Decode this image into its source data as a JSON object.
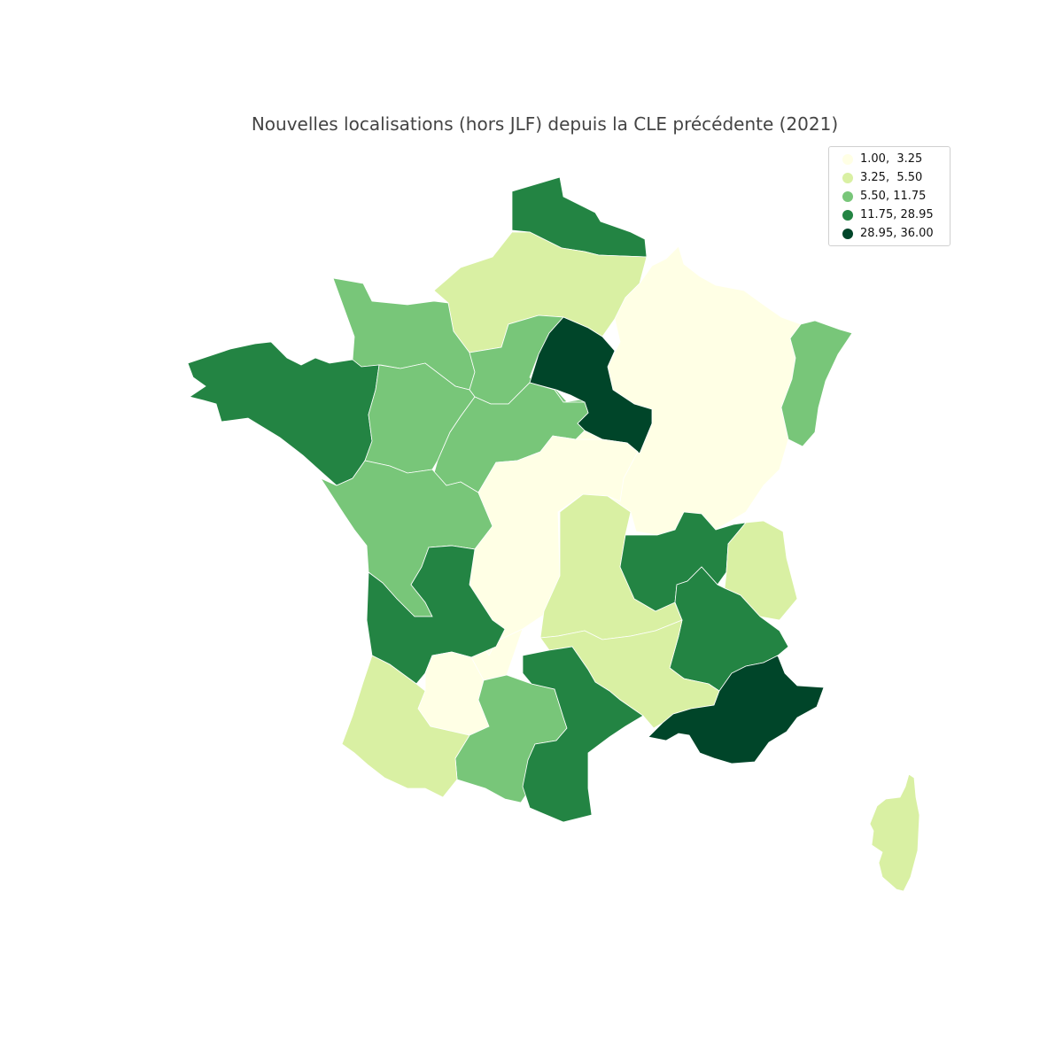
{
  "title": "Nouvelles localisations (hors JLF) depuis la CLE précédente (2021)",
  "legend": {
    "entries": [
      {
        "label": "1.00,  3.25",
        "color": "#ffffe5"
      },
      {
        "label": "3.25,  5.50",
        "color": "#d9f0a3"
      },
      {
        "label": "5.50, 11.75",
        "color": "#78c679"
      },
      {
        "label": "11.75, 28.95",
        "color": "#238443"
      },
      {
        "label": "28.95, 36.00",
        "color": "#004529"
      }
    ]
  },
  "regions": [
    {
      "class": 3
    },
    {
      "class": 1
    },
    {
      "class": 0
    },
    {
      "class": 2
    },
    {
      "class": 2
    },
    {
      "class": 2
    },
    {
      "class": 4
    },
    {
      "class": 3
    },
    {
      "class": 2
    },
    {
      "class": 2
    },
    {
      "class": 2
    },
    {
      "class": 0
    },
    {
      "class": 1
    },
    {
      "class": 3
    },
    {
      "class": 1
    },
    {
      "class": 0
    },
    {
      "class": 3
    },
    {
      "class": 3
    },
    {
      "class": 1
    },
    {
      "class": 0
    },
    {
      "class": 2
    },
    {
      "class": 3
    },
    {
      "class": 1
    },
    {
      "class": 4
    },
    {
      "class": 1
    }
  ]
}
